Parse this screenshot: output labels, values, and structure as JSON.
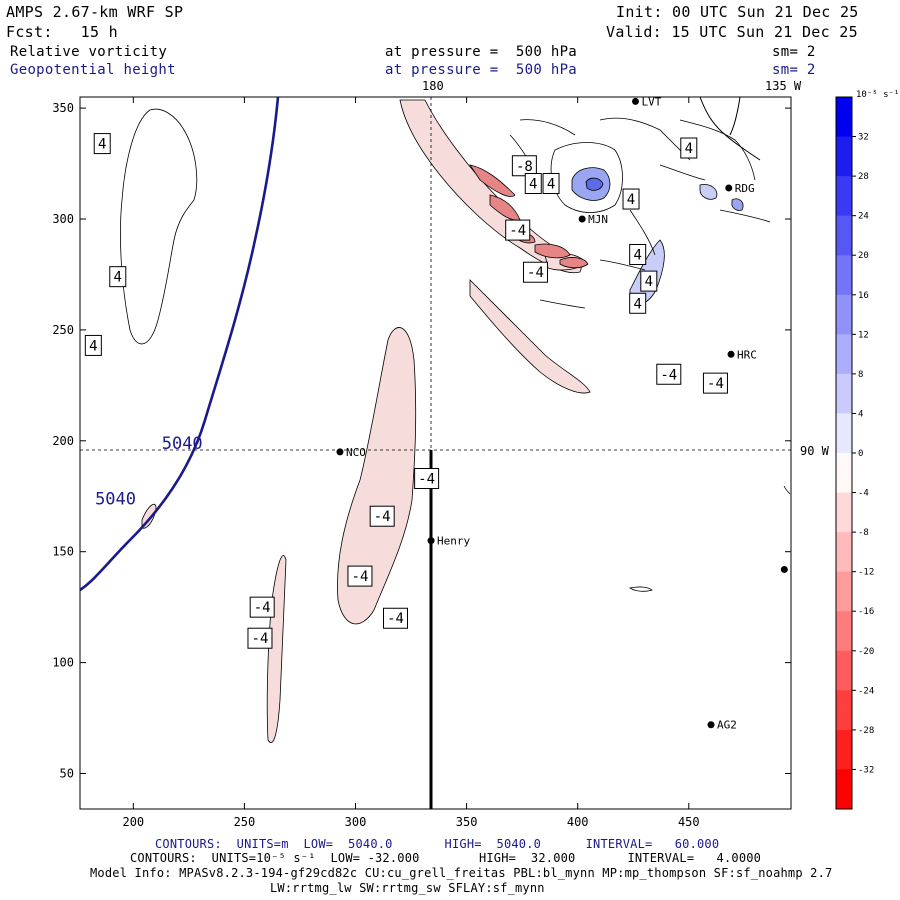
{
  "header": {
    "model": "AMPS 2.67-km WRF SP",
    "init": "Init: 00 UTC Sun 21 Dec 25",
    "fcst": "Fcst:   15 h",
    "valid": "Valid: 15 UTC Sun 21 Dec 25",
    "field1": "Relative vorticity",
    "level1": "at pressure =  500 hPa",
    "sm1": "sm= 2",
    "field2": "Geopotential height",
    "level2": "at pressure =  500 hPa",
    "sm2": "sm= 2"
  },
  "map": {
    "meridian_top_label": "180",
    "corner_top_label": "135 W",
    "right_edge_label": "90 W",
    "x_ticks": [
      200,
      250,
      300,
      350,
      400,
      450
    ],
    "y_ticks": [
      350,
      300,
      250,
      200,
      150,
      100,
      50
    ],
    "x_range": [
      176,
      496
    ],
    "y_range": [
      34,
      355
    ],
    "stations": [
      {
        "name": "LVT",
        "x": 426,
        "y": 353
      },
      {
        "name": "RDG",
        "x": 468,
        "y": 314
      },
      {
        "name": "MJN",
        "x": 402,
        "y": 300
      },
      {
        "name": "HRC",
        "x": 469,
        "y": 239
      },
      {
        "name": "NCO",
        "x": 293,
        "y": 195
      },
      {
        "name": "Henry",
        "x": 334,
        "y": 155
      },
      {
        "name": "AG2",
        "x": 460,
        "y": 72
      },
      {
        "name": "",
        "x": 493,
        "y": 142
      }
    ],
    "height_labels": [
      {
        "text": "5040",
        "x": 222,
        "y": 199
      },
      {
        "text": "5040",
        "x": 192,
        "y": 174
      }
    ],
    "vorticity_labels": [
      {
        "text": "4",
        "x": 186,
        "y": 334
      },
      {
        "text": "4",
        "x": 193,
        "y": 274
      },
      {
        "text": "4",
        "x": 182,
        "y": 243
      },
      {
        "text": "-8",
        "x": 376,
        "y": 324
      },
      {
        "text": "4",
        "x": 380,
        "y": 316
      },
      {
        "text": "4",
        "x": 388,
        "y": 316
      },
      {
        "text": "4",
        "x": 450,
        "y": 332
      },
      {
        "text": "4",
        "x": 424,
        "y": 309
      },
      {
        "text": "-4",
        "x": 373,
        "y": 295
      },
      {
        "text": "4",
        "x": 427,
        "y": 284
      },
      {
        "text": "-4",
        "x": 381,
        "y": 276
      },
      {
        "text": "4",
        "x": 432,
        "y": 272
      },
      {
        "text": "4",
        "x": 427,
        "y": 262
      },
      {
        "text": "-4",
        "x": 441,
        "y": 230
      },
      {
        "text": "-4",
        "x": 462,
        "y": 226
      },
      {
        "text": "-4",
        "x": 332,
        "y": 183
      },
      {
        "text": "-4",
        "x": 312,
        "y": 166
      },
      {
        "text": "-4",
        "x": 302,
        "y": 139
      },
      {
        "text": "-4",
        "x": 318,
        "y": 120
      },
      {
        "text": "-4",
        "x": 258,
        "y": 125
      },
      {
        "text": "-4",
        "x": 257,
        "y": 111
      }
    ]
  },
  "colorbar": {
    "unit": "10⁻⁵ s⁻¹",
    "labels": [
      "32",
      "28",
      "24",
      "20",
      "16",
      "12",
      "8",
      "4",
      "0",
      "-4",
      "-8",
      "-12",
      "-16",
      "-20",
      "-24",
      "-28",
      "-32"
    ]
  },
  "footer": {
    "line1": "CONTOURS:  UNITS=m  LOW=  5040.0       HIGH=  5040.0      INTERVAL=   60.000",
    "line2": "CONTOURS:  UNITS=10⁻⁵ s⁻¹  LOW= -32.000        HIGH=  32.000       INTERVAL=   4.0000",
    "line3": "Model Info: MPASv8.2.3-194-gf29cd82c CU:cu_grell_freitas PBL:bl_mynn MP:mp_thompson SF:sf_noahmp 2.7",
    "line4": "LW:rrtmg_lw SW:rrtmg_sw SFLAY:sf_mynn"
  }
}
